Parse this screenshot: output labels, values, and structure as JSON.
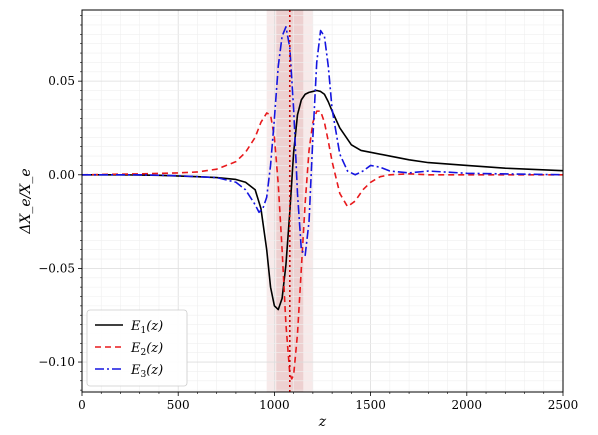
{
  "chart_data": {
    "type": "line",
    "xlabel": "z",
    "ylabel": "ΔX_e/X_e",
    "xlim": [
      0,
      2500
    ],
    "ylim": [
      -0.116,
      0.088
    ],
    "xticks": [
      0,
      500,
      1000,
      1500,
      2000,
      2500
    ],
    "xtick_labels": [
      "0",
      "500",
      "1000",
      "1500",
      "2000",
      "2500"
    ],
    "yticks": [
      -0.1,
      -0.05,
      0.0,
      0.05
    ],
    "ytick_labels": [
      "−0.10",
      "−0.05",
      "0.00",
      "0.05"
    ],
    "grid": true,
    "legend_position": "lower-left",
    "vline": {
      "x": 1080,
      "color": "#cc0000",
      "style": "dotted"
    },
    "bands": [
      {
        "x0": 960,
        "x1": 1200,
        "color": "#e8c4c4",
        "opacity": 0.35
      },
      {
        "x0": 1010,
        "x1": 1150,
        "color": "#d9a0a0",
        "opacity": 0.35
      }
    ],
    "series": [
      {
        "name": "E_1(z)",
        "legend_main": "E",
        "legend_sub": "1",
        "legend_tail": "(z)",
        "color": "#000000",
        "dash": "",
        "x": [
          0,
          200,
          400,
          600,
          700,
          800,
          850,
          900,
          930,
          960,
          980,
          1000,
          1020,
          1040,
          1060,
          1080,
          1100,
          1120,
          1140,
          1160,
          1180,
          1200,
          1220,
          1240,
          1260,
          1280,
          1300,
          1340,
          1400,
          1450,
          1500,
          1600,
          1700,
          1800,
          2000,
          2200,
          2500
        ],
        "y": [
          0.0,
          0.0,
          -0.0003,
          -0.001,
          -0.0015,
          -0.0025,
          -0.004,
          -0.008,
          -0.018,
          -0.04,
          -0.06,
          -0.07,
          -0.072,
          -0.066,
          -0.048,
          -0.02,
          0.012,
          0.032,
          0.04,
          0.043,
          0.044,
          0.0445,
          0.045,
          0.0445,
          0.043,
          0.039,
          0.034,
          0.025,
          0.016,
          0.013,
          0.012,
          0.01,
          0.008,
          0.0065,
          0.005,
          0.0035,
          0.0022
        ]
      },
      {
        "name": "E_2(z)",
        "legend_main": "E",
        "legend_sub": "2",
        "legend_tail": "(z)",
        "color": "#e8191c",
        "dash": "6,4",
        "x": [
          0,
          300,
          500,
          600,
          700,
          800,
          850,
          900,
          930,
          960,
          980,
          1000,
          1020,
          1040,
          1060,
          1080,
          1090,
          1100,
          1120,
          1140,
          1160,
          1180,
          1200,
          1220,
          1240,
          1260,
          1280,
          1300,
          1340,
          1380,
          1420,
          1460,
          1500,
          1550,
          1600,
          1700,
          1800,
          2000,
          2500
        ],
        "y": [
          0.0,
          0.0005,
          0.001,
          0.0015,
          0.003,
          0.007,
          0.012,
          0.02,
          0.028,
          0.033,
          0.032,
          0.02,
          -0.005,
          -0.04,
          -0.08,
          -0.106,
          -0.109,
          -0.107,
          -0.085,
          -0.05,
          -0.015,
          0.013,
          0.028,
          0.034,
          0.034,
          0.028,
          0.018,
          0.007,
          -0.01,
          -0.017,
          -0.014,
          -0.008,
          -0.004,
          -0.001,
          0.0,
          0.0005,
          0.0,
          0.0,
          0.0
        ]
      },
      {
        "name": "E_3(z)",
        "legend_main": "E",
        "legend_sub": "3",
        "legend_tail": "(z)",
        "color": "#1515e0",
        "dash": "9,3,2,3",
        "x": [
          0,
          300,
          500,
          600,
          700,
          800,
          850,
          900,
          920,
          940,
          960,
          980,
          1000,
          1020,
          1040,
          1060,
          1080,
          1100,
          1120,
          1140,
          1160,
          1180,
          1200,
          1220,
          1240,
          1260,
          1280,
          1300,
          1340,
          1380,
          1420,
          1460,
          1500,
          1550,
          1600,
          1700,
          1800,
          2000,
          2500
        ],
        "y": [
          0.0,
          0.0,
          -0.0005,
          -0.001,
          -0.0015,
          -0.004,
          -0.008,
          -0.016,
          -0.02,
          -0.018,
          -0.012,
          0.005,
          0.03,
          0.058,
          0.074,
          0.079,
          0.068,
          0.035,
          -0.01,
          -0.04,
          -0.043,
          -0.025,
          0.02,
          0.06,
          0.077,
          0.074,
          0.058,
          0.035,
          0.011,
          0.002,
          0.0,
          0.002,
          0.005,
          0.004,
          0.002,
          0.001,
          0.002,
          0.0008,
          0.0
        ]
      }
    ]
  }
}
